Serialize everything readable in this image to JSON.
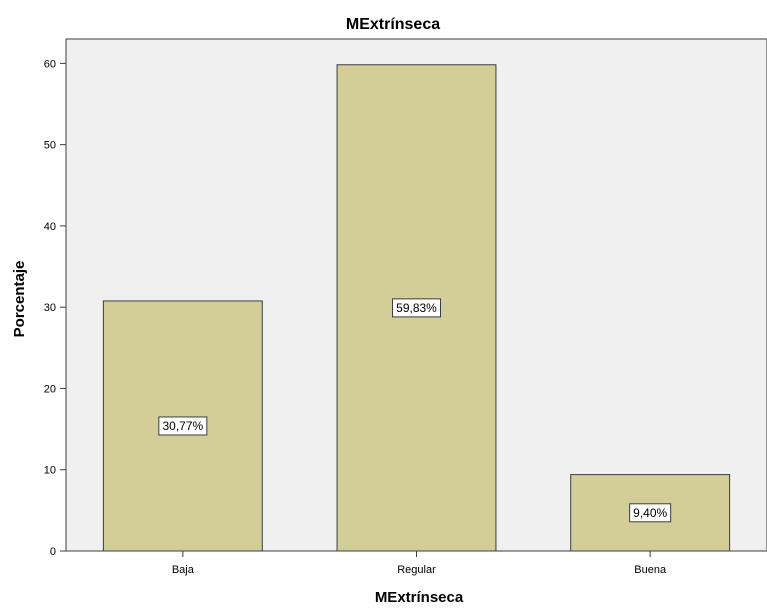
{
  "chart_data": {
    "type": "bar",
    "title": "MExtrínseca",
    "xlabel": "MExtrínseca",
    "ylabel": "Porcentaje",
    "categories": [
      "Baja",
      "Regular",
      "Buena"
    ],
    "values": [
      30.77,
      59.83,
      9.4
    ],
    "data_labels": [
      "30,77%",
      "59,83%",
      "9,40%"
    ],
    "ylim": [
      0,
      63
    ],
    "yticks": [
      0,
      10,
      20,
      30,
      40,
      50,
      60
    ],
    "grid": false,
    "legend": "none",
    "colors": {
      "plot_background": "#f0f0f0",
      "bar_fill": "#d3ce97",
      "bar_stroke": "#3c3c3c",
      "label_box": "#ffffff"
    }
  }
}
